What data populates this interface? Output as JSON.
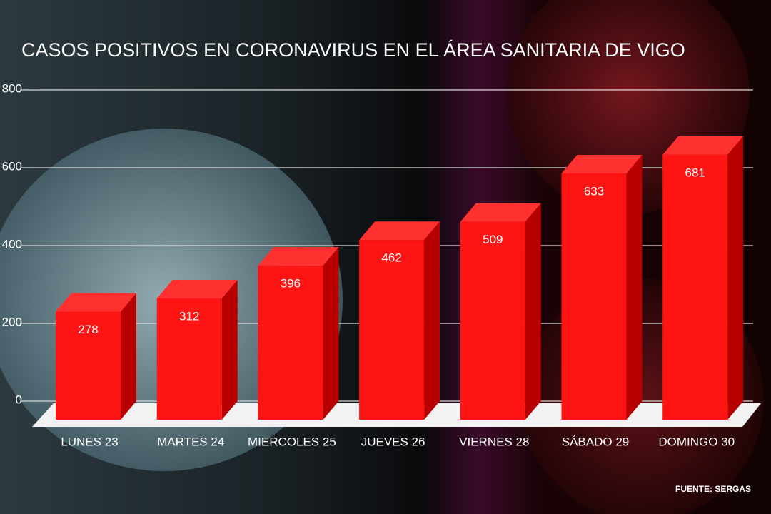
{
  "chart_data": {
    "type": "bar",
    "title": "CASOS POSITIVOS EN CORONAVIRUS EN EL ÁREA SANITARIA DE VIGO",
    "categories": [
      "LUNES 23",
      "MARTES 24",
      "MIERCOLES 25",
      "JUEVES 26",
      "VIERNES 28",
      "SÁBADO 29",
      "DOMINGO 30"
    ],
    "values": [
      278,
      312,
      396,
      462,
      509,
      633,
      681
    ],
    "color": "#ff1414",
    "ylim": [
      0,
      800
    ],
    "yticks": [
      0,
      200,
      400,
      600,
      800
    ],
    "grid": true,
    "source": "FUENTE: SERGAS"
  }
}
